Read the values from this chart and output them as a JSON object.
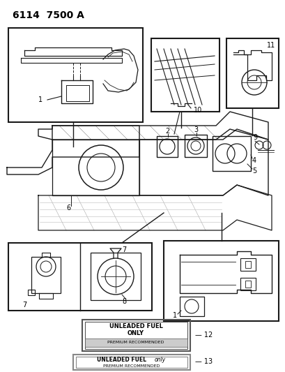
{
  "title": "6114  7500 A",
  "bg_color": "#ffffff",
  "line_color": "#1a1a1a",
  "lw_main": 1.2,
  "lw_thin": 0.7,
  "label_12_line1": "UNLEADED FUEL",
  "label_12_line2": "ONLY",
  "label_12_line3": "PREMIUM RECOMMENDED",
  "label_13_line1": "UNLEADED FUEL",
  "label_13_line1b": "only",
  "label_13_line2": "PREMIUM RECOMMENDED"
}
